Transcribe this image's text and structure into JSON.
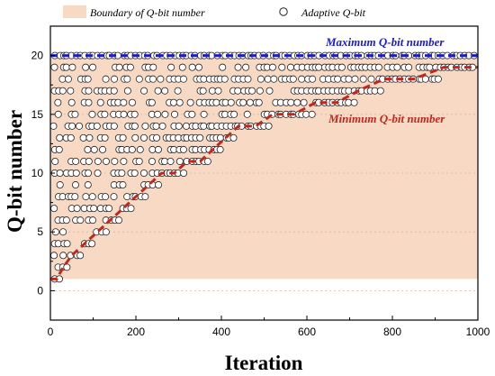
{
  "chart_data": {
    "type": "scatter",
    "xlabel": "Iteration",
    "ylabel": "Q-bit number",
    "xlim": [
      0,
      1000
    ],
    "ylim": [
      -2.5,
      22.5
    ],
    "xticks": [
      0,
      200,
      400,
      600,
      800,
      1000
    ],
    "yticks": [
      0,
      5,
      10,
      15,
      20
    ],
    "grid": true,
    "legend": {
      "placement": "top",
      "entries": [
        "Boundary of Q-bit number",
        "Adaptive Q-bit"
      ]
    },
    "colors": {
      "boundary_fill": "#f8d9c3",
      "max_line": "#1c1ccc",
      "min_line": "#c0271e",
      "marker_edge": "#222222",
      "marker_fill": "#ffffff"
    },
    "annotations": {
      "max": "Maximum Q-bit number",
      "min": "Minimum Q-bit number"
    },
    "max_qbit": 20,
    "min_qbit_curve": {
      "x": [
        0,
        15,
        30,
        50,
        80,
        110,
        140,
        170,
        200,
        230,
        260,
        290,
        320,
        350,
        380,
        410,
        440,
        480,
        520,
        570,
        620,
        670,
        720,
        780,
        850,
        920,
        1000
      ],
      "y": [
        1,
        1,
        2,
        3,
        4,
        5,
        6,
        7,
        8,
        9,
        10,
        10,
        11,
        11,
        12,
        13,
        14,
        14,
        15,
        15,
        16,
        16,
        17,
        18,
        18,
        19,
        19
      ]
    },
    "adaptive_series": {
      "name": "Adaptive Q-bit",
      "columns_per_row": 14,
      "max": 20
    }
  }
}
